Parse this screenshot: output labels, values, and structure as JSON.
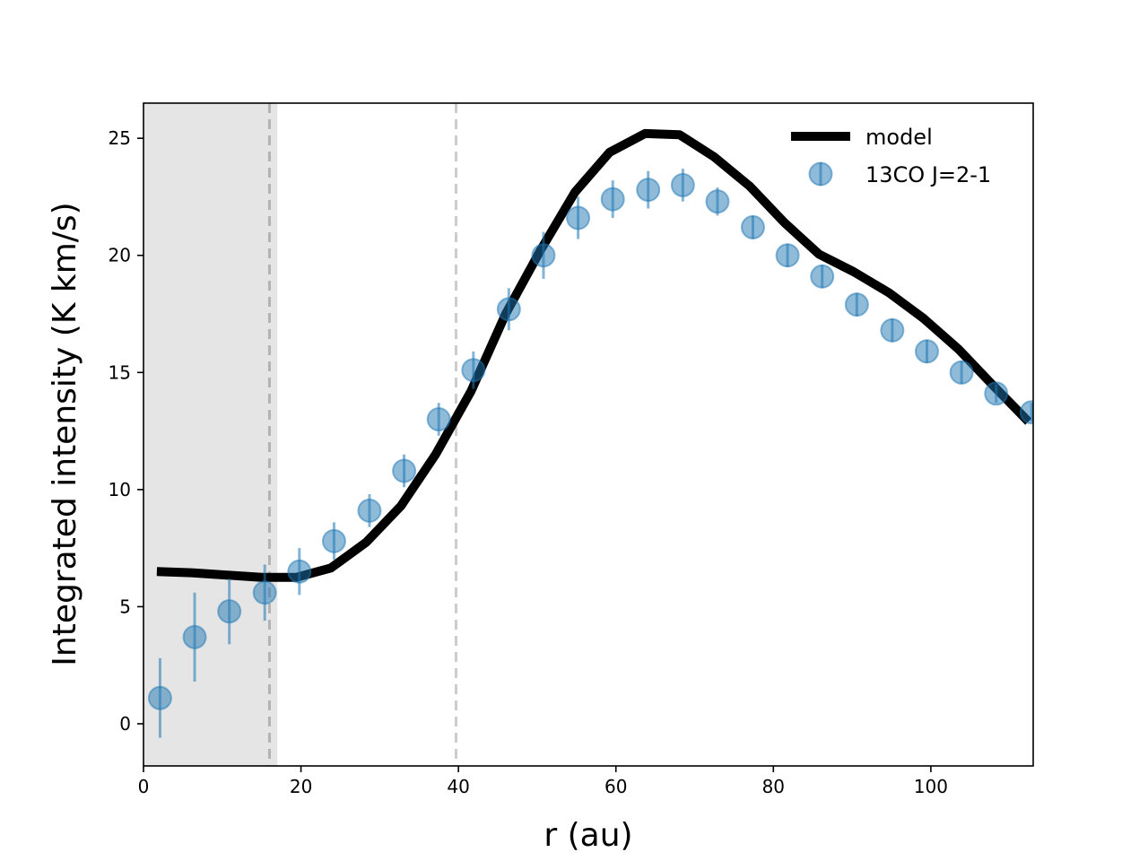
{
  "chart_data": {
    "type": "line",
    "title": "",
    "xlabel": "r (au)",
    "ylabel": "Integrated intensity (K km/s)",
    "xlim": [
      0,
      113
    ],
    "ylim": [
      -1.8,
      26.5
    ],
    "xticks": [
      0,
      20,
      40,
      60,
      80,
      100
    ],
    "yticks": [
      0,
      5,
      10,
      15,
      20,
      25
    ],
    "grid": false,
    "legend_position": "top-right",
    "shaded_region": {
      "x": [
        0,
        17
      ]
    },
    "vertical_lines": [
      16,
      39.7
    ],
    "series": [
      {
        "name": "model",
        "kind": "line",
        "color": "#000000",
        "x": [
          1.7,
          6.1,
          10.6,
          15.0,
          19.4,
          23.8,
          28.3,
          32.7,
          37.1,
          41.6,
          46.0,
          50.4,
          54.8,
          59.2,
          63.7,
          68.1,
          72.5,
          77.0,
          81.4,
          85.8,
          90.2,
          94.7,
          99.1,
          103.5,
          107.9,
          112.4
        ],
        "y": [
          6.5,
          6.45,
          6.35,
          6.25,
          6.25,
          6.65,
          7.75,
          9.3,
          11.5,
          14.2,
          17.5,
          20.2,
          22.7,
          24.4,
          25.2,
          25.15,
          24.2,
          22.95,
          21.4,
          20.05,
          19.3,
          18.4,
          17.3,
          16.0,
          14.45,
          12.9
        ]
      },
      {
        "name": "13CO J=2-1",
        "kind": "errorbar",
        "color": "#1f77b4",
        "x": [
          2.1,
          6.5,
          10.9,
          15.4,
          19.8,
          24.2,
          28.7,
          33.1,
          37.5,
          41.9,
          46.4,
          50.8,
          55.2,
          59.6,
          64.1,
          68.5,
          72.9,
          77.4,
          81.8,
          86.2,
          90.6,
          95.1,
          99.5,
          103.9,
          108.3,
          112.8
        ],
        "y": [
          1.1,
          3.7,
          4.8,
          5.6,
          6.5,
          7.8,
          9.1,
          10.8,
          13.0,
          15.1,
          17.7,
          20.0,
          21.6,
          22.4,
          22.8,
          23.0,
          22.3,
          21.2,
          20.0,
          19.1,
          17.9,
          16.8,
          15.9,
          15.0,
          14.1,
          13.3
        ],
        "yerr": [
          1.7,
          1.9,
          1.4,
          1.2,
          1.0,
          0.8,
          0.7,
          0.7,
          0.7,
          0.8,
          0.9,
          1.0,
          0.9,
          0.8,
          0.8,
          0.7,
          0.6,
          0.5,
          0.5,
          0.5,
          0.5,
          0.5,
          0.5,
          0.5,
          0.4,
          0.4
        ]
      }
    ]
  }
}
